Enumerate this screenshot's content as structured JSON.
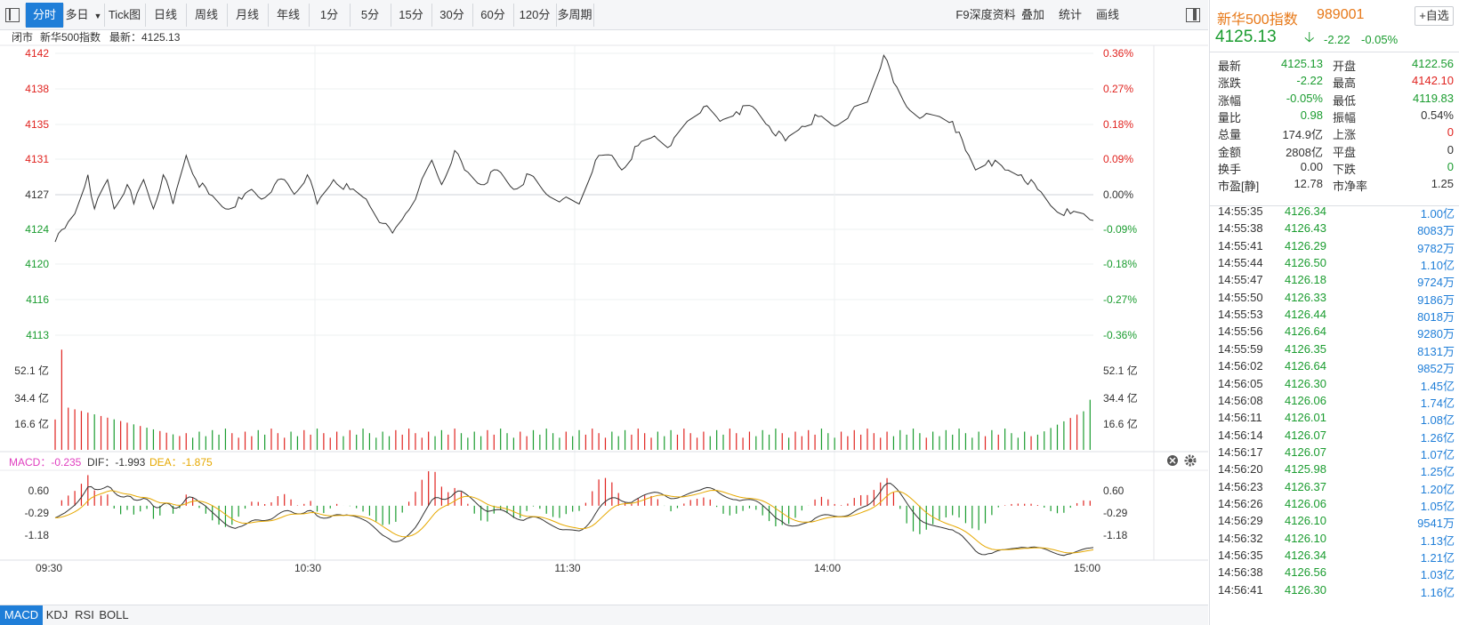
{
  "toolbar": {
    "toggle_icon": "panel-toggle-icon",
    "tabs": [
      {
        "label": "分时",
        "active": true
      },
      {
        "label": "多日"
      },
      {
        "label": "Tick图"
      },
      {
        "label": "日线"
      },
      {
        "label": "周线"
      },
      {
        "label": "月线"
      },
      {
        "label": "年线"
      },
      {
        "label": "1分"
      },
      {
        "label": "5分"
      },
      {
        "label": "15分"
      },
      {
        "label": "30分"
      },
      {
        "label": "60分"
      },
      {
        "label": "120分"
      },
      {
        "label": "多周期"
      }
    ],
    "right": [
      "F9深度资料",
      "叠加",
      "统计",
      "画线"
    ]
  },
  "info_bar": {
    "status": "闭市",
    "name": "新华500指数",
    "latest": "最新：4125.13"
  },
  "header": {
    "title": "新华500指数",
    "code": "989001",
    "fav_label": "+自选",
    "last": "4125.13",
    "arrow": "🡣",
    "change": "-2.22",
    "pct": "-0.05%"
  },
  "quote": [
    {
      "l1": "最新",
      "v1": "4125.13",
      "c1": "green",
      "l2": "开盘",
      "v2": "4122.56",
      "c2": "green"
    },
    {
      "l1": "涨跌",
      "v1": "-2.22",
      "c1": "green",
      "l2": "最高",
      "v2": "4142.10",
      "c2": "red"
    },
    {
      "l1": "涨幅",
      "v1": "-0.05%",
      "c1": "green",
      "l2": "最低",
      "v2": "4119.83",
      "c2": "green"
    },
    {
      "l1": "量比",
      "v1": "0.98",
      "c1": "green",
      "l2": "振幅",
      "v2": "0.54%",
      "c2": "black"
    },
    {
      "l1": "总量",
      "v1": "174.9亿",
      "c1": "black",
      "l2": "上涨",
      "v2": "0",
      "c2": "red"
    },
    {
      "l1": "金额",
      "v1": "2808亿",
      "c1": "black",
      "l2": "平盘",
      "v2": "0",
      "c2": "black"
    },
    {
      "l1": "换手",
      "v1": "0.00",
      "c1": "black",
      "l2": "下跌",
      "v2": "0",
      "c2": "green"
    },
    {
      "l1": "市盈[静]",
      "v1": "12.78",
      "c1": "black",
      "l2": "市净率",
      "v2": "1.25",
      "c2": "black"
    }
  ],
  "ticks": [
    {
      "t": "14:55:35",
      "p": "4126.34",
      "v": "1.00亿"
    },
    {
      "t": "14:55:38",
      "p": "4126.43",
      "v": "8083万"
    },
    {
      "t": "14:55:41",
      "p": "4126.29",
      "v": "9782万"
    },
    {
      "t": "14:55:44",
      "p": "4126.50",
      "v": "1.10亿"
    },
    {
      "t": "14:55:47",
      "p": "4126.18",
      "v": "9724万"
    },
    {
      "t": "14:55:50",
      "p": "4126.33",
      "v": "9186万"
    },
    {
      "t": "14:55:53",
      "p": "4126.44",
      "v": "8018万"
    },
    {
      "t": "14:55:56",
      "p": "4126.64",
      "v": "9280万"
    },
    {
      "t": "14:55:59",
      "p": "4126.35",
      "v": "8131万"
    },
    {
      "t": "14:56:02",
      "p": "4126.64",
      "v": "9852万"
    },
    {
      "t": "14:56:05",
      "p": "4126.30",
      "v": "1.45亿"
    },
    {
      "t": "14:56:08",
      "p": "4126.06",
      "v": "1.74亿"
    },
    {
      "t": "14:56:11",
      "p": "4126.01",
      "v": "1.08亿"
    },
    {
      "t": "14:56:14",
      "p": "4126.07",
      "v": "1.26亿"
    },
    {
      "t": "14:56:17",
      "p": "4126.07",
      "v": "1.07亿"
    },
    {
      "t": "14:56:20",
      "p": "4125.98",
      "v": "1.25亿"
    },
    {
      "t": "14:56:23",
      "p": "4126.37",
      "v": "1.20亿"
    },
    {
      "t": "14:56:26",
      "p": "4126.06",
      "v": "1.05亿"
    },
    {
      "t": "14:56:29",
      "p": "4126.10",
      "v": "9541万"
    },
    {
      "t": "14:56:32",
      "p": "4126.10",
      "v": "1.13亿"
    },
    {
      "t": "14:56:35",
      "p": "4126.34",
      "v": "1.21亿"
    },
    {
      "t": "14:56:38",
      "p": "4126.56",
      "v": "1.03亿"
    },
    {
      "t": "14:56:41",
      "p": "4126.30",
      "v": "1.16亿"
    }
  ],
  "chart_data": {
    "type": "line",
    "prev_close": 4127,
    "price_ticks_left": [
      "4142",
      "4138",
      "4135",
      "4131",
      "4127",
      "4124",
      "4120",
      "4116",
      "4113"
    ],
    "price_ticks_right": [
      "0.36%",
      "0.27%",
      "0.18%",
      "0.09%",
      "0.00%",
      "-0.09%",
      "-0.18%",
      "-0.27%",
      "-0.36%"
    ],
    "vol_ticks": [
      "52.1 亿",
      "34.4 亿",
      "16.6 亿"
    ],
    "time_ticks": [
      "09:30",
      "10:30",
      "11:30",
      "14:00",
      "15:00"
    ],
    "price_keys": [
      [
        0,
        4122.6
      ],
      [
        3,
        4124.0
      ],
      [
        6,
        4125.5
      ],
      [
        10,
        4129.5
      ],
      [
        12,
        4126.0
      ],
      [
        16,
        4129.0
      ],
      [
        18,
        4126.0
      ],
      [
        22,
        4128.5
      ],
      [
        24,
        4126.5
      ],
      [
        27,
        4129.0
      ],
      [
        30,
        4126.0
      ],
      [
        33,
        4129.5
      ],
      [
        36,
        4126.5
      ],
      [
        40,
        4131.5
      ],
      [
        43,
        4129.0
      ],
      [
        47,
        4127.5
      ],
      [
        52,
        4126.0
      ],
      [
        57,
        4127.0
      ],
      [
        60,
        4128.0
      ],
      [
        63,
        4127.0
      ],
      [
        67,
        4128.5
      ],
      [
        70,
        4129.0
      ],
      [
        73,
        4127.5
      ],
      [
        77,
        4129.5
      ],
      [
        80,
        4126.5
      ],
      [
        85,
        4129.0
      ],
      [
        90,
        4128.0
      ],
      [
        95,
        4127.0
      ],
      [
        100,
        4124.5
      ],
      [
        103,
        4123.5
      ],
      [
        107,
        4125.5
      ],
      [
        111,
        4128.0
      ],
      [
        115,
        4131.0
      ],
      [
        118,
        4128.5
      ],
      [
        122,
        4132.0
      ],
      [
        125,
        4130.0
      ],
      [
        130,
        4128.5
      ],
      [
        135,
        4130.0
      ],
      [
        140,
        4128.0
      ],
      [
        145,
        4129.5
      ],
      [
        150,
        4127.5
      ],
      [
        155,
        4127.0
      ],
      [
        160,
        4126.5
      ],
      [
        165,
        4131.0
      ],
      [
        170,
        4131.5
      ],
      [
        173,
        4130.0
      ],
      [
        178,
        4132.5
      ],
      [
        183,
        4133.5
      ],
      [
        188,
        4132.5
      ],
      [
        193,
        4135.0
      ],
      [
        198,
        4136.5
      ],
      [
        203,
        4135.0
      ],
      [
        208,
        4136.0
      ],
      [
        213,
        4136.5
      ],
      [
        218,
        4134.5
      ],
      [
        223,
        4133.0
      ],
      [
        228,
        4134.5
      ],
      [
        233,
        4135.5
      ],
      [
        238,
        4134.5
      ],
      [
        243,
        4136.0
      ],
      [
        248,
        4137.0
      ],
      [
        253,
        4141.8
      ],
      [
        256,
        4139.0
      ],
      [
        260,
        4136.5
      ],
      [
        265,
        4135.5
      ],
      [
        270,
        4135.5
      ],
      [
        274,
        4135.0
      ],
      [
        278,
        4132.0
      ],
      [
        281,
        4130.0
      ],
      [
        285,
        4131.0
      ],
      [
        290,
        4130.0
      ],
      [
        295,
        4129.5
      ],
      [
        300,
        4128.0
      ],
      [
        305,
        4126.0
      ],
      [
        310,
        4125.5
      ],
      [
        314,
        4125.5
      ],
      [
        317,
        4124.8
      ]
    ],
    "total_points": 318,
    "dif_range": [
      -1.993,
      0.9
    ],
    "macd": {
      "label": "MACD：-0.235",
      "dif": "DIF：-1.993",
      "dea": "DEA：-1.875",
      "ticks": [
        "0.60",
        "-0.29",
        "-1.18"
      ]
    }
  },
  "bottom_tabs": [
    {
      "label": "MACD",
      "active": true
    },
    {
      "label": "KDJ"
    },
    {
      "label": "RSI"
    },
    {
      "label": "BOLL"
    }
  ]
}
